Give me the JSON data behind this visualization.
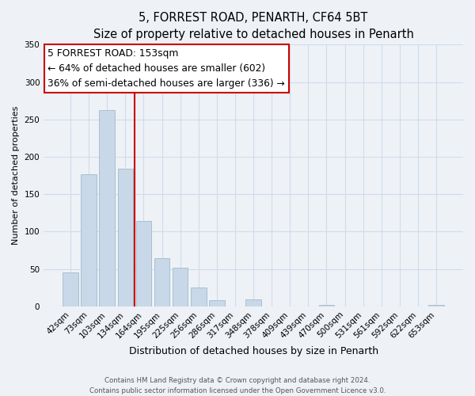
{
  "title": "5, FORREST ROAD, PENARTH, CF64 5BT",
  "subtitle": "Size of property relative to detached houses in Penarth",
  "xlabel": "Distribution of detached houses by size in Penarth",
  "ylabel": "Number of detached properties",
  "categories": [
    "42sqm",
    "73sqm",
    "103sqm",
    "134sqm",
    "164sqm",
    "195sqm",
    "225sqm",
    "256sqm",
    "286sqm",
    "317sqm",
    "348sqm",
    "378sqm",
    "409sqm",
    "439sqm",
    "470sqm",
    "500sqm",
    "531sqm",
    "561sqm",
    "592sqm",
    "622sqm",
    "653sqm"
  ],
  "values": [
    45,
    177,
    262,
    184,
    114,
    65,
    52,
    25,
    8,
    0,
    9,
    0,
    0,
    0,
    2,
    0,
    0,
    0,
    0,
    0,
    2
  ],
  "bar_color": "#c8d8e8",
  "bar_edge_color": "#a8c0d0",
  "vline_x": 3.5,
  "vline_color": "#cc0000",
  "annotation_title": "5 FORREST ROAD: 153sqm",
  "annotation_line1": "← 64% of detached houses are smaller (602)",
  "annotation_line2": "36% of semi-detached houses are larger (336) →",
  "annotation_box_color": "#ffffff",
  "annotation_box_edge": "#cc0000",
  "ylim": [
    0,
    350
  ],
  "yticks": [
    0,
    50,
    100,
    150,
    200,
    250,
    300,
    350
  ],
  "footer1": "Contains HM Land Registry data © Crown copyright and database right 2024.",
  "footer2": "Contains public sector information licensed under the Open Government Licence v3.0.",
  "bg_color": "#eef2f7",
  "plot_bg_color": "#eef2f7",
  "grid_color": "#d0dcea",
  "title_fontsize": 10.5,
  "subtitle_fontsize": 9.5,
  "ylabel_fontsize": 8,
  "xlabel_fontsize": 9,
  "tick_fontsize": 7.5
}
